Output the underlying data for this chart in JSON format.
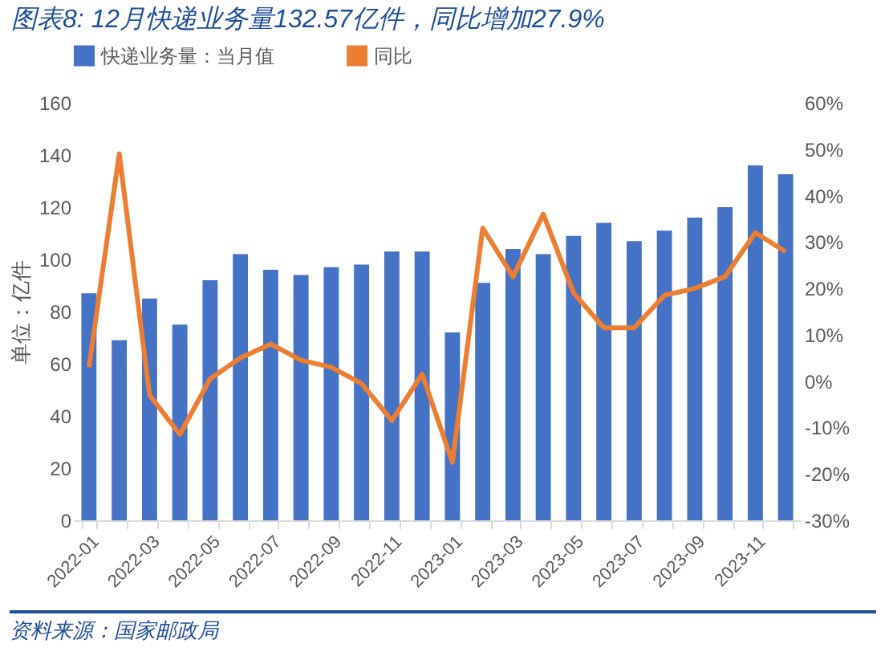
{
  "chart_data": {
    "type": "bar",
    "title": "图表8:  12月快递业务量132.57亿件，同比增加27.9%",
    "ylabel": "单位：亿件",
    "categories": [
      "2022-01",
      null,
      "2022-03",
      null,
      "2022-05",
      null,
      "2022-07",
      null,
      "2022-09",
      null,
      "2022-11",
      null,
      "2023-01",
      null,
      "2023-03",
      null,
      "2023-05",
      null,
      "2023-07",
      null,
      "2023-09",
      null,
      "2023-11",
      null
    ],
    "series": [
      {
        "name": "快递业务量：当月值",
        "color": "#4472c4",
        "values": [
          87,
          69,
          85,
          75,
          92,
          102,
          96,
          94,
          97,
          98,
          103,
          103,
          72,
          91,
          104,
          102,
          109,
          114,
          107,
          111,
          116,
          120,
          136,
          132.6
        ]
      },
      {
        "name": "同比",
        "type": "line",
        "axis": "y2",
        "color": "#ed7d31",
        "values": [
          3,
          49,
          -3,
          -11.5,
          0.5,
          5,
          8,
          4.5,
          3,
          -0.5,
          -8.5,
          1.5,
          -17.5,
          33,
          22.5,
          36,
          19,
          11.5,
          11.5,
          18.5,
          20,
          22.5,
          32,
          27.9
        ]
      }
    ],
    "ylim": [
      0,
      160
    ],
    "yticks": [
      0,
      20,
      40,
      60,
      80,
      100,
      120,
      140,
      160
    ],
    "y2lim": [
      -30,
      60
    ],
    "y2ticks": [
      {
        "value": -30,
        "label": "-30%"
      },
      {
        "value": -20,
        "label": "-20%"
      },
      {
        "value": -10,
        "label": "-10%"
      },
      {
        "value": 0,
        "label": "0%"
      },
      {
        "value": 10,
        "label": "10%"
      },
      {
        "value": 20,
        "label": "20%"
      },
      {
        "value": 30,
        "label": "30%"
      },
      {
        "value": 40,
        "label": "40%"
      },
      {
        "value": 50,
        "label": "50%"
      },
      {
        "value": 60,
        "label": "60%"
      }
    ],
    "legend": "top",
    "grid": false,
    "annotations": [
      "资料来源：国家邮政局"
    ]
  }
}
